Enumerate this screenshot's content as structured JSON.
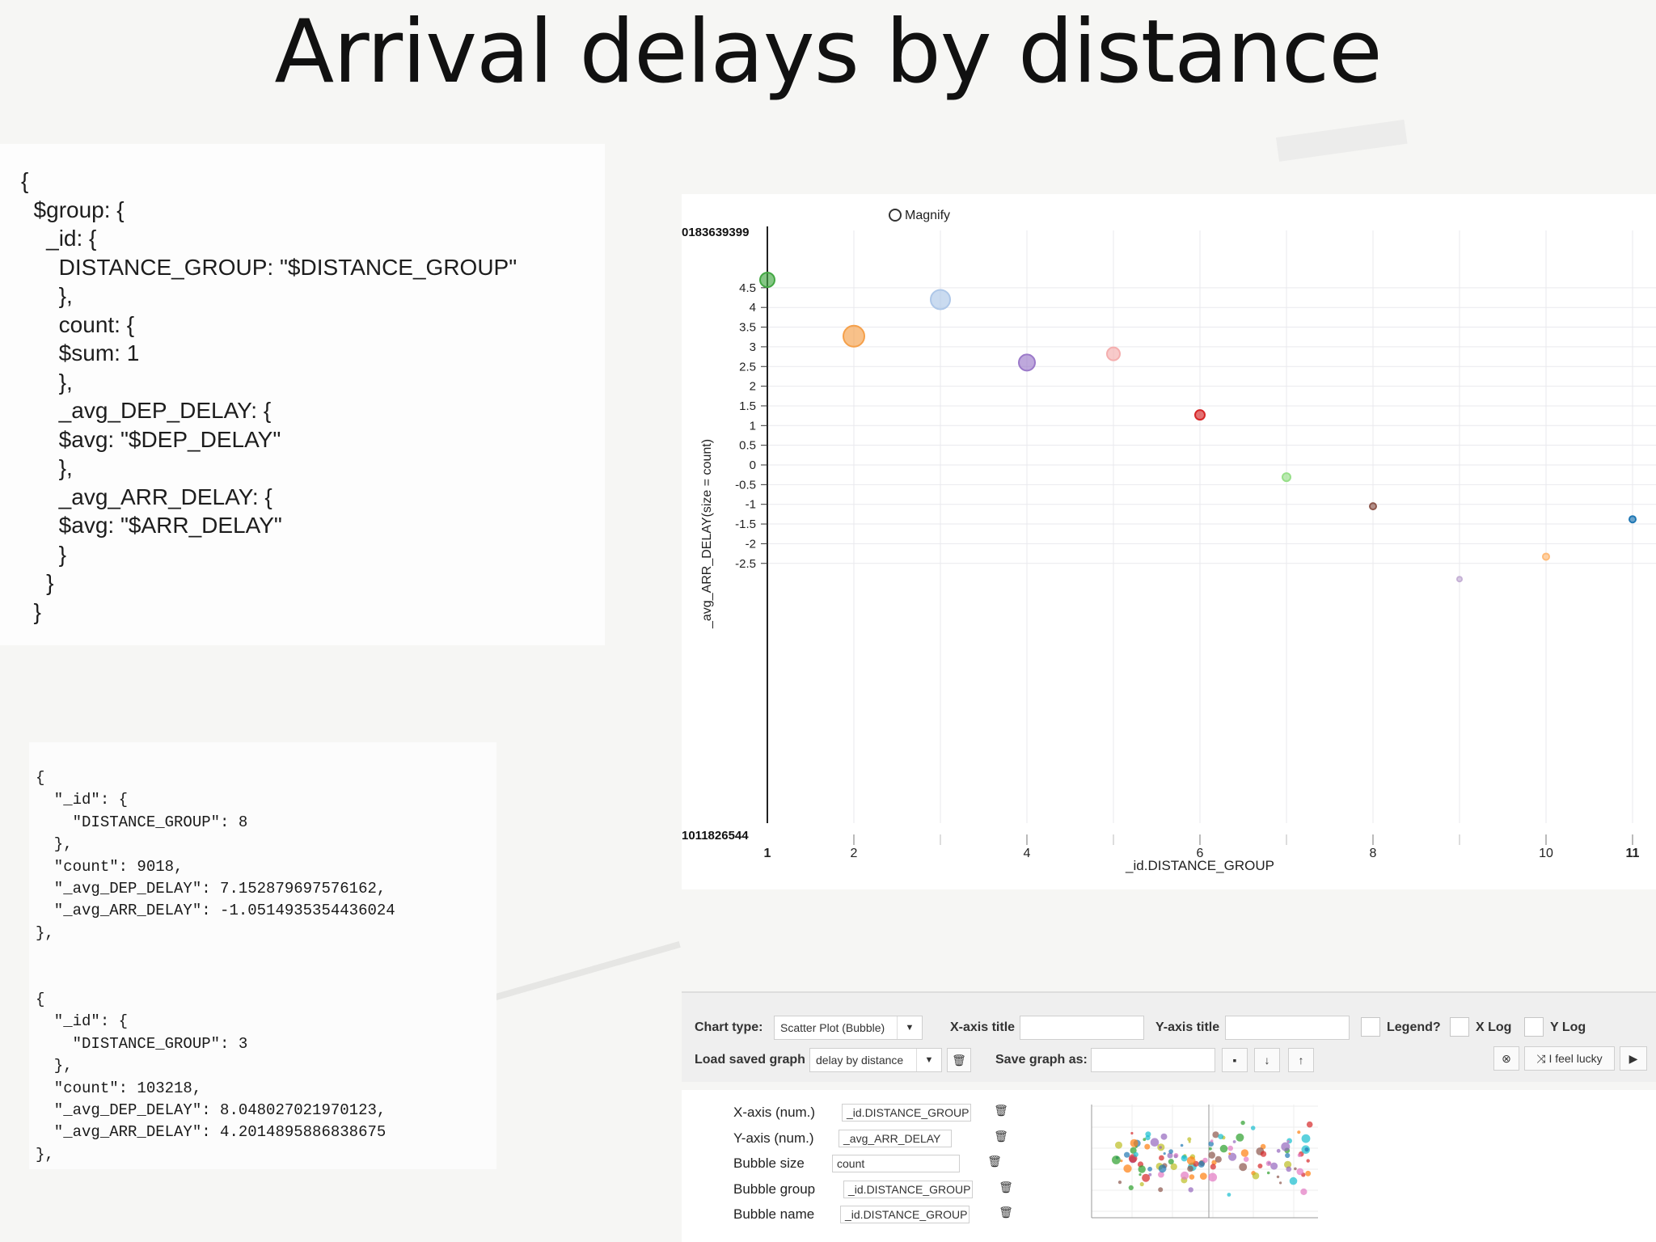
{
  "slide": {
    "title": "Arrival delays by distance"
  },
  "group_code": {
    "lines": [
      "{",
      "  $group: {",
      "    _id: {",
      "      DISTANCE_GROUP: \"$DISTANCE_GROUP\"",
      "      },",
      "      count: {",
      "      $sum: 1",
      "      },",
      "      _avg_DEP_DELAY: {",
      "      $avg: \"$DEP_DELAY\"",
      "      },",
      "      _avg_ARR_DELAY: {",
      "      $avg: \"$ARR_DELAY\"",
      "      }",
      "    }",
      "  }"
    ]
  },
  "result_json": {
    "lines": [
      "{",
      "  \"_id\": {",
      "    \"DISTANCE_GROUP\": 8",
      "  },",
      "  \"count\": 9018,",
      "  \"_avg_DEP_DELAY\": 7.152879697576162,",
      "  \"_avg_ARR_DELAY\": -1.0514935354436024",
      "},",
      "",
      "",
      "{",
      "  \"_id\": {",
      "    \"DISTANCE_GROUP\": 3",
      "  },",
      "  \"count\": 103218,",
      "  \"_avg_DEP_DELAY\": 8.048027021970123,",
      "  \"_avg_ARR_DELAY\": 4.2014895886838675",
      "},"
    ]
  },
  "chart": {
    "magnify_label": "Magnify",
    "y_max_label": "0183639399",
    "y_min_label": "1011826544"
  },
  "chart_data": {
    "type": "scatter",
    "title": "",
    "xlabel": "_id.DISTANCE_GROUP",
    "ylabel": "_avg_ARR_DELAY(size = count)",
    "xlim": [
      1,
      11
    ],
    "ylim": [
      -2.9,
      4.7
    ],
    "x_ticks": [
      "1",
      "2",
      "4",
      "6",
      "8",
      "10",
      "11"
    ],
    "y_ticks": [
      "4.5",
      "4",
      "3.5",
      "3",
      "2.5",
      "2",
      "1.5",
      "1",
      "0.5",
      "0",
      "-0.5",
      "-1",
      "-1.5",
      "-2",
      "-2.5"
    ],
    "grid": true,
    "points": [
      {
        "x": 1,
        "y": 4.7,
        "color": "#43a843"
      },
      {
        "x": 2,
        "y": 3.27,
        "color": "#f5a04a"
      },
      {
        "x": 3,
        "y": 4.2,
        "color": "#aec7e8"
      },
      {
        "x": 4,
        "y": 2.6,
        "color": "#9b79c9"
      },
      {
        "x": 5,
        "y": 2.82,
        "color": "#f4aeae"
      },
      {
        "x": 6,
        "y": 1.27,
        "color": "#d62728"
      },
      {
        "x": 7,
        "y": -0.31,
        "color": "#98df8a"
      },
      {
        "x": 8,
        "y": -1.05,
        "color": "#8c564b"
      },
      {
        "x": 9,
        "y": -2.9,
        "color": "#c5b0d5"
      },
      {
        "x": 10,
        "y": -2.33,
        "color": "#ffbb78"
      },
      {
        "x": 11,
        "y": -1.38,
        "color": "#1f77b4"
      }
    ],
    "sizes": [
      9,
      13,
      12,
      10,
      8,
      6,
      5,
      4,
      3,
      4,
      4
    ]
  },
  "controls": {
    "chart_type_label": "Chart type:",
    "chart_type_value": "Scatter Plot (Bubble)",
    "x_axis_title_label": "X-axis title",
    "x_axis_title_value": "",
    "y_axis_title_label": "Y-axis title",
    "y_axis_title_value": "",
    "legend_label": "Legend?",
    "x_log_label": "X Log",
    "y_log_label": "Y Log",
    "load_saved_label": "Load saved graph",
    "load_saved_value": "delay by distance",
    "save_as_label": "Save graph as:",
    "save_as_value": "",
    "lucky_label": "I feel lucky"
  },
  "mapping": {
    "rows": [
      {
        "label": "X-axis (num.)",
        "value": "_id.DISTANCE_GROUP"
      },
      {
        "label": "Y-axis (num.)",
        "value": "_avg_ARR_DELAY"
      },
      {
        "label": "Bubble size",
        "value": "count"
      },
      {
        "label": "Bubble group",
        "value": "_id.DISTANCE_GROUP"
      },
      {
        "label": "Bubble name",
        "value": "_id.DISTANCE_GROUP"
      }
    ]
  }
}
